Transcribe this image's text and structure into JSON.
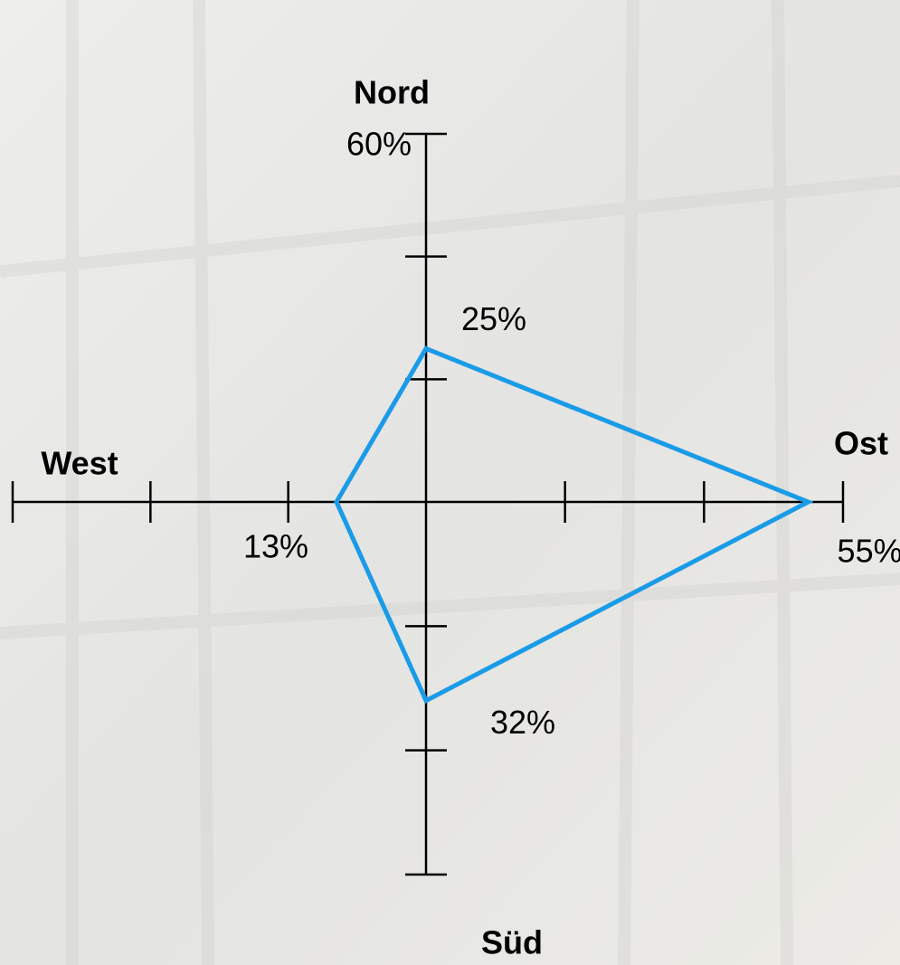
{
  "chart_data": {
    "type": "radar",
    "categories": [
      "Nord",
      "Ost",
      "Süd",
      "West"
    ],
    "values": [
      25,
      55,
      32,
      13
    ],
    "value_labels": [
      "25%",
      "55%",
      "32%",
      "13%"
    ],
    "color": "#1a9be8",
    "ylim": [
      0,
      60
    ],
    "yticks": [
      20,
      40,
      {
        "value": 60,
        "label": "60%"
      }
    ]
  }
}
